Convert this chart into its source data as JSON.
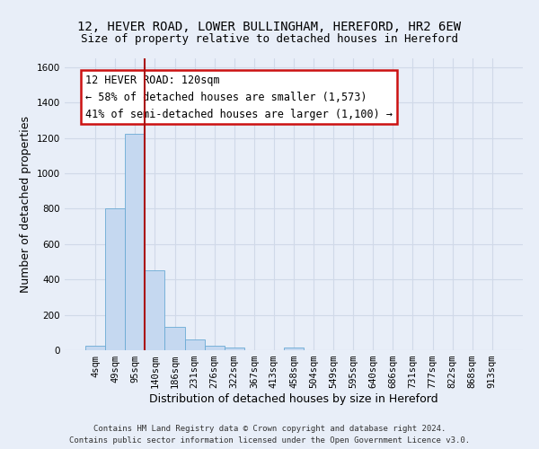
{
  "title": "12, HEVER ROAD, LOWER BULLINGHAM, HEREFORD, HR2 6EW",
  "subtitle": "Size of property relative to detached houses in Hereford",
  "xlabel": "Distribution of detached houses by size in Hereford",
  "ylabel": "Number of detached properties",
  "footer_line1": "Contains HM Land Registry data © Crown copyright and database right 2024.",
  "footer_line2": "Contains public sector information licensed under the Open Government Licence v3.0.",
  "bin_labels": [
    "4sqm",
    "49sqm",
    "95sqm",
    "140sqm",
    "186sqm",
    "231sqm",
    "276sqm",
    "322sqm",
    "367sqm",
    "413sqm",
    "458sqm",
    "504sqm",
    "549sqm",
    "595sqm",
    "640sqm",
    "686sqm",
    "731sqm",
    "777sqm",
    "822sqm",
    "868sqm",
    "913sqm"
  ],
  "bar_values": [
    25,
    800,
    1225,
    450,
    130,
    60,
    25,
    15,
    0,
    0,
    15,
    0,
    0,
    0,
    0,
    0,
    0,
    0,
    0,
    0,
    0
  ],
  "bar_color": "#c5d8f0",
  "bar_edge_color": "#6aaad4",
  "grid_color": "#d0d9e8",
  "background_color": "#e8eef8",
  "vline_x_index": 2.48,
  "vline_color": "#aa1111",
  "ylim": [
    0,
    1650
  ],
  "yticks": [
    0,
    200,
    400,
    600,
    800,
    1000,
    1200,
    1400,
    1600
  ],
  "annotation_text": "12 HEVER ROAD: 120sqm\n← 58% of detached houses are smaller (1,573)\n41% of semi-detached houses are larger (1,100) →",
  "annotation_box_color": "#ffffff",
  "annotation_box_edge": "#cc1111",
  "annotation_fontsize": 8.5,
  "title_fontsize": 10,
  "subtitle_fontsize": 9,
  "xlabel_fontsize": 9,
  "ylabel_fontsize": 9,
  "tick_fontsize": 7.5,
  "footer_fontsize": 6.5
}
